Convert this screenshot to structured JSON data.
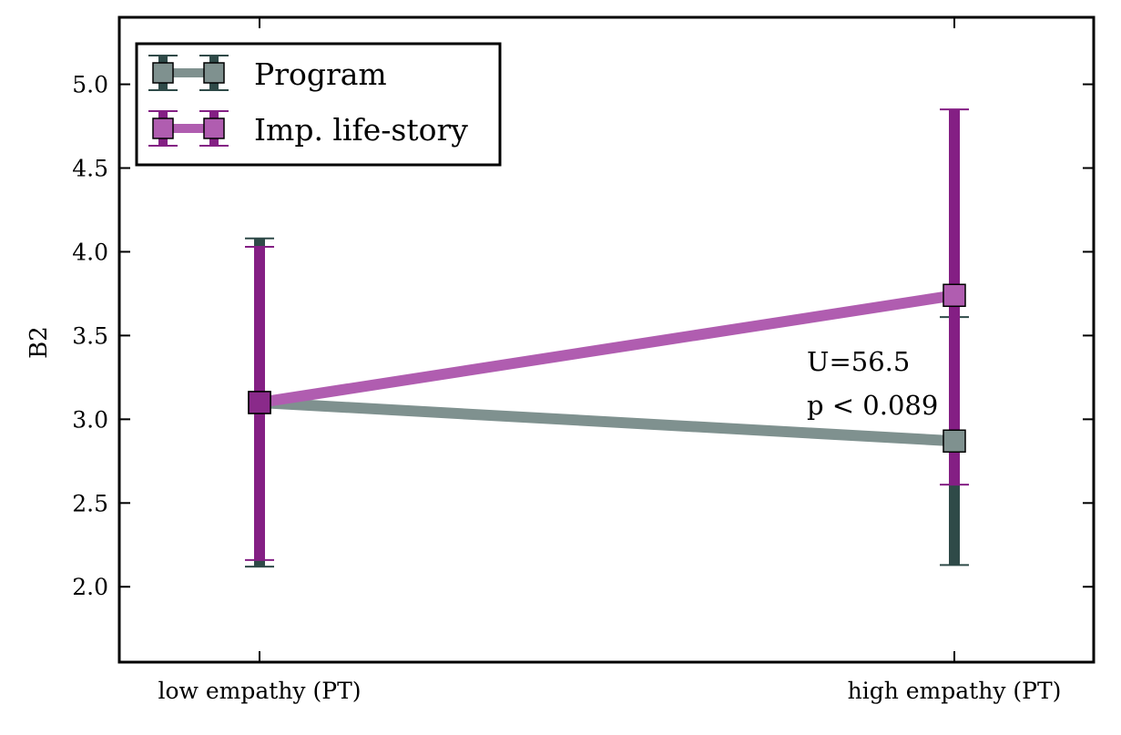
{
  "chart_data": {
    "type": "line",
    "title": "",
    "xlabel": "",
    "ylabel": "B2",
    "categories": [
      "low empathy (PT)",
      "high empathy (PT)"
    ],
    "ylim": [
      1.55,
      5.4
    ],
    "yticks": [
      2.0,
      2.5,
      3.0,
      3.5,
      4.0,
      4.5,
      5.0
    ],
    "ytick_labels": [
      "2.0",
      "2.5",
      "3.0",
      "3.5",
      "4.0",
      "4.5",
      "5.0"
    ],
    "grid": false,
    "legend_position": "top-left",
    "series": [
      {
        "name": "Program",
        "values": [
          3.1,
          2.87
        ],
        "error_low": [
          2.12,
          2.13
        ],
        "error_high": [
          4.08,
          3.61
        ],
        "line_color": "#7f918f",
        "error_color": "#2f4a48",
        "marker_color": "#7f918f"
      },
      {
        "name": "Imp. life-story",
        "values": [
          3.1,
          3.74
        ],
        "error_low": [
          2.16,
          2.61
        ],
        "error_high": [
          4.03,
          4.85
        ],
        "line_color": "#b05db0",
        "error_color": "#841f84",
        "marker_color": "#b05db0"
      }
    ],
    "annotation": {
      "line1": "U=56.5",
      "line2": "p < 0.089"
    },
    "shared_marker_color": "#8a2a8a"
  }
}
